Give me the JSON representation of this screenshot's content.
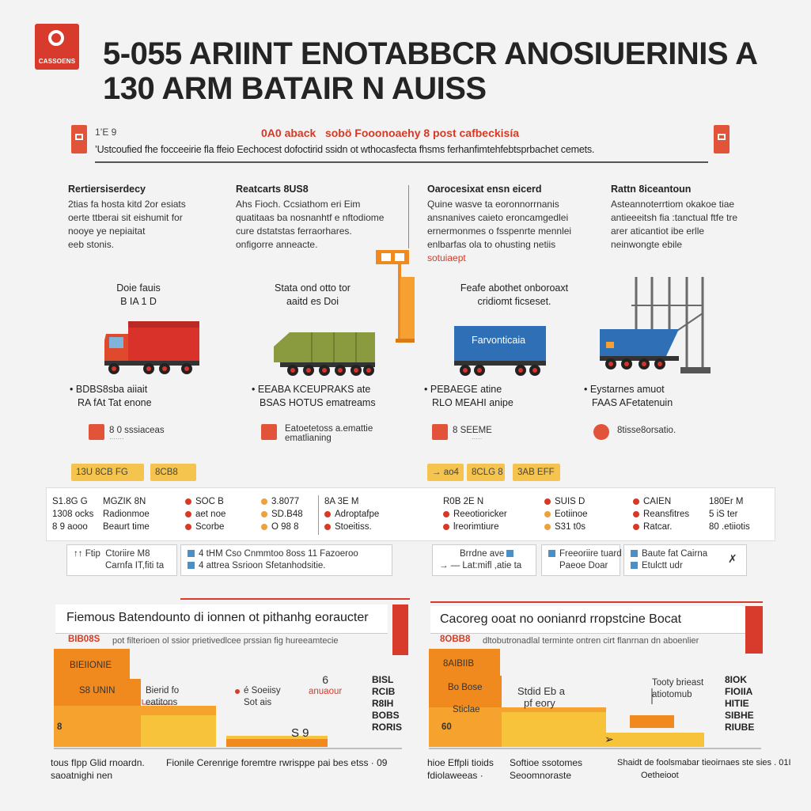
{
  "header": {
    "logo_text": "CASSOENS",
    "title_line1": "5-055 ARIINT ENOTABBCR ANOSIUERINIS A",
    "title_line2": "130 ARM BATAIR N AUISS",
    "subtitle_tag": "1’E 9",
    "subtitle_red": "0A0 aback    sobö Fooonoaehy 8 post cafbeckisía",
    "subtitle_line": "’Ustcoufied fhe focceeirie fla ffeio Eechocest dofoctirid ssidn ot wthocasfecta fhsms ferhanfimtehfebtsprbachet cemets."
  },
  "columns": [
    {
      "heading": "Rertiersiserdecy",
      "text": [
        "2tias fa hosta kitd 2or esiats",
        "oerte ttberai sit eishumit for",
        "nooye ye nepiaitat",
        "eeb stonis."
      ]
    },
    {
      "heading": "Reatcarts 8US8",
      "text": [
        "Ahs Fioch. Ccsiathom eri Eim",
        "quatitaas ba nosnanhtf e nftodiome",
        "cure dstatstas ferraorhares.",
        "onfigorre anneacte."
      ]
    },
    {
      "heading": "Oarocesixat ensn eicerd",
      "text": [
        "Quine wasve ta eoronnorrnanis",
        "ansnanives caieto eroncamgedlei",
        "ernermonmes o fsspenrte mennlei",
        "enlbarfas ola to ohusting netiis"
      ],
      "red": "sotuiaept"
    },
    {
      "heading": "Rattn 8iceantoun",
      "text": [
        "Asteannoterrtiom okakoe tiae",
        "antieeeitsh fia :tanctual ftfe tre",
        "arer aticantiot ibe erlle",
        "neinwongte ebile"
      ]
    }
  ],
  "vehicles": [
    {
      "caption": [
        "Doie fauis",
        "B IA 1 D"
      ],
      "bullet": [
        "BDBS8sba aiiait",
        "RA fAt Tat enone"
      ],
      "tag": "8 0  sssiaceas",
      "tag_small": "·······"
    },
    {
      "caption": [
        "Stata ond otto tor",
        "aaitd es Doi"
      ],
      "bullet": [
        "EEABA KCEUPRAKS ate",
        "BSAS HOTUS ematreams"
      ],
      "tag": "Eatoetetoss a.emattie",
      "tag_small": "ematlianing"
    },
    {
      "caption": [
        "Feafe abothet onboroaxt",
        "cridiomt ficseset."
      ],
      "side_label": "Farvonticaia",
      "bullet": [
        "PEBAEGE atine",
        "RLO  MEAHI anipe"
      ],
      "tag": "8  SEEME",
      "tag_small": "·····"
    },
    {
      "caption": [],
      "bullet": [
        "Eystarnes amuot",
        "FAAS  AFetatenuin"
      ],
      "tag": "8tisse8orsatio."
    }
  ],
  "chips": [
    "13U  8CB  FG",
    "8CB8",
    "→  ao4",
    "8CLG  8",
    "3AB  EFF"
  ],
  "band": {
    "left": [
      [
        "S1.8G  G",
        "1308  ocks",
        "8 9  aooo"
      ],
      [
        "MGZIK  8N",
        "Radionmoe",
        "Beaurt time"
      ],
      [
        "SOC  B",
        "aet noe",
        "Scorbe"
      ],
      [
        "3.8077",
        "SD.B48",
        "O 98 8"
      ]
    ],
    "mid": [
      "8A 3E  M",
      "Adroptafpe",
      "Stoeitiss."
    ],
    "right": [
      [
        "R0B  2E N",
        "Reeotioricker",
        "lreorimtiure"
      ],
      [
        "SUIS  D",
        "Eotiinoe",
        "S31 t0s"
      ],
      [
        "CAIEN",
        "Reansfitres",
        "Ratcar."
      ],
      [
        "180Er  M",
        "5 iS ter",
        "80 .etiiotis"
      ]
    ]
  },
  "boxes": [
    {
      "lines": [
        "Ctoriire  M8",
        "Carnfa IT,fiti ta"
      ],
      "prefix": "↑↑  Ftip"
    },
    {
      "lines": [
        "4 tHM  Cso   Cnmmtoo 8oss   11      Fazoeroo",
        "4 attrea  Ssrioon  Sfetanhodsitie."
      ]
    },
    {
      "lines": [
        "Brrdne  ave",
        "Lat:mifl ,atie ta"
      ],
      "prefix": "→  —"
    },
    {
      "lines": [
        "Freeoriire  tuard",
        "Paeoe  Doar"
      ]
    },
    {
      "lines": [
        "Baute  fat   Cairna",
        "Etulctt  udr"
      ]
    }
  ],
  "panels": [
    {
      "title": "Fiemous Batendounto di ionnen ot pithanhg eoraucter",
      "red_tag": "BIB08S",
      "subtitle": "pot filterioen ol ssior prietivedlcee prssian fig hureeamtecie",
      "steps": [
        "BIEIIONIE",
        "S8  UNIN",
        "8"
      ],
      "callouts": [
        {
          "text": [
            "Bierid  fo",
            "eatitons"
          ]
        },
        {
          "text": [
            "é Soeiisy",
            "Sot ais"
          ]
        },
        {
          "text": [
            "6",
            "anuaour"
          ]
        }
      ],
      "value": "S 9",
      "legend": [
        "BISL",
        "RCIB",
        "R8IH",
        "BOBS",
        "RORIS"
      ],
      "footer": [
        "tous fIpp  Glid rnoardn.",
        "saoatnighi nen"
      ],
      "footer_right": "Fionile Cerenrige  foremtre rwrisppe pai bes etss · 09"
    },
    {
      "title": "Cacoreg ooat no oonianrd rropstcine Bocat",
      "red_tag": "8OBB8",
      "subtitle": "dltobutronadlal  terminte ontren cirt flanrnan dn aboenlier",
      "steps": [
        "8AIBIIB",
        "Bo Bose",
        "Sticlae",
        "60"
      ],
      "callouts": [
        {
          "text": [
            "Stdid   Eb a",
            "pf  eory"
          ]
        },
        {
          "text": [
            "Tooty brieast",
            "atiotomub"
          ]
        }
      ],
      "legend": [
        "8IOK",
        "FIOIIA",
        "HITIE",
        "SIBHE",
        "RIUBE"
      ],
      "footer": [
        "hioe  Effpli  tioids",
        "fdiolaweeas  ·"
      ],
      "footer_mid": [
        "Softioe  ssotomes",
        "Seoomnoraste"
      ],
      "footer_right": [
        "Shaidt de foolsmabar tieoirnaes ste sies . 01I",
        "Oetheioot"
      ]
    }
  ],
  "colors": {
    "accent_red": "#d83a2b",
    "chart_orange": "#f08a1e",
    "chart_yellow": "#f6c33b",
    "truck_red": "#d8322b",
    "truck_green": "#8a9a3e",
    "truck_blue": "#2f6fb5"
  }
}
